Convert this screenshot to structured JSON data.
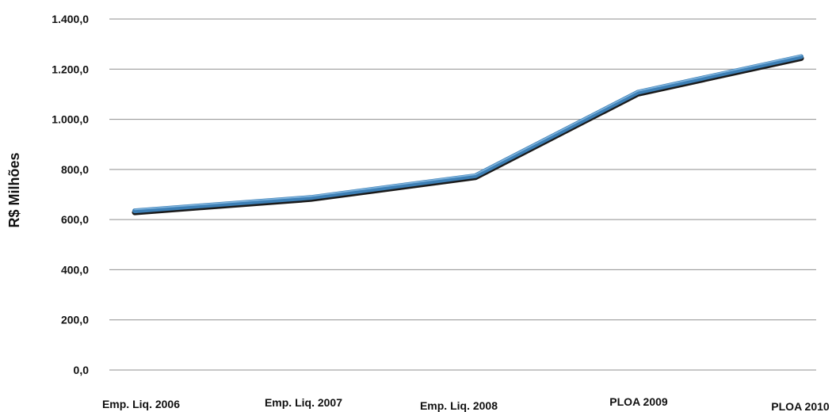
{
  "chart_data": {
    "type": "line",
    "title": "",
    "xlabel": "",
    "ylabel": "R$ Milhões",
    "ylim": [
      0,
      1400
    ],
    "yticks": [
      0,
      200,
      400,
      600,
      800,
      1000,
      1200,
      1400
    ],
    "ytick_labels": [
      "0,0",
      "200,0",
      "400,0",
      "600,0",
      "800,0",
      "1.000,0",
      "1.200,0",
      "1.400,0"
    ],
    "grid": true,
    "legend": "none",
    "categories": [
      "Emp. Liq. 2006",
      "Emp. Liq. 2007",
      "Emp. Liq. 2008",
      "PLOA 2009",
      "PLOA 2010"
    ],
    "series": [
      {
        "values": [
          635,
          688,
          775,
          1108,
          1250
        ],
        "color": "#3d7fb5"
      }
    ]
  }
}
